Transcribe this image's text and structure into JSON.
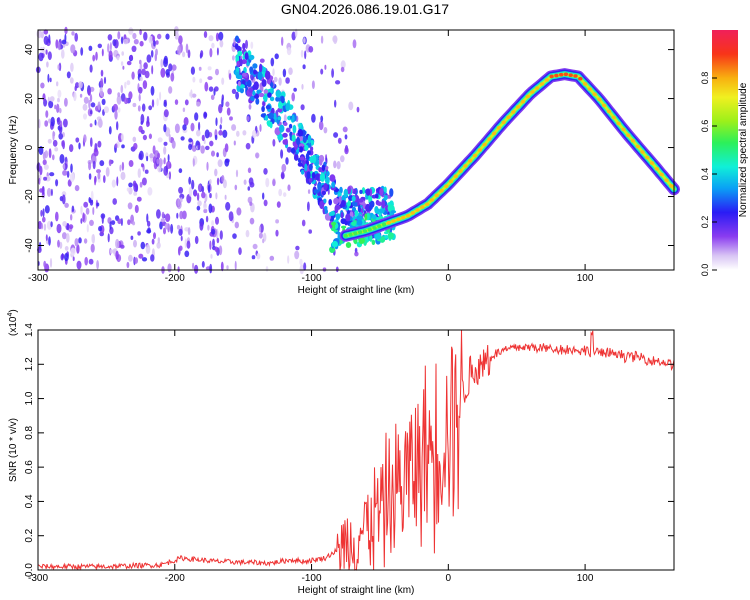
{
  "title": "GN04.2026.086.19.01.G17",
  "chart_data": [
    {
      "type": "heatmap",
      "xlabel": "Height of straight line (km)",
      "ylabel": "Frequency (Hz)",
      "xlim": [
        -300,
        165
      ],
      "ylim": [
        -50,
        48
      ],
      "xticks": [
        -300,
        -200,
        -100,
        0,
        100
      ],
      "yticks": [
        -40,
        -20,
        0,
        20,
        40
      ],
      "colorbar": {
        "label": "Normalized spectral amplitude",
        "ticks": [
          "0.0",
          "0.2",
          "0.4",
          "0.6",
          "0.8"
        ],
        "tick_values": [
          0.0,
          0.2,
          0.4,
          0.6,
          0.8
        ],
        "range": [
          0,
          1
        ]
      },
      "ridge": {
        "x": [
          -75,
          -60,
          -45,
          -30,
          -15,
          0,
          20,
          40,
          60,
          75,
          85,
          95,
          110,
          130,
          150,
          165
        ],
        "y": [
          -36,
          -34,
          -31,
          -28,
          -23,
          -15,
          -3,
          10,
          22,
          29,
          30,
          29,
          20,
          6,
          -7,
          -17
        ]
      },
      "noise_band": {
        "x": [
          -155,
          -140,
          -125,
          -110,
          -95,
          -80
        ],
        "y": [
          35,
          26,
          15,
          3,
          -12,
          -27
        ]
      }
    },
    {
      "type": "line",
      "xlabel": "Height of straight line (km)",
      "ylabel": "SNR (10 * v/v)",
      "multiplier": "(x10",
      "multiplier_exp": "4",
      "multiplier_close": ")",
      "xlim": [
        -300,
        165
      ],
      "ylim": [
        0,
        1.4
      ],
      "xticks": [
        -300,
        -200,
        -100,
        0,
        100
      ],
      "yticks": [
        "0.0",
        "0.2",
        "0.4",
        "0.6",
        "0.8",
        "1.0",
        "1.2",
        "1.4"
      ],
      "ytick_values": [
        0.0,
        0.2,
        0.4,
        0.6,
        0.8,
        1.0,
        1.2,
        1.4
      ],
      "color": "#ee3333",
      "series": {
        "name": "SNR",
        "x": [
          -300,
          -250,
          -210,
          -195,
          -170,
          -130,
          -115,
          -105,
          -90,
          -75,
          -60,
          -50,
          -40,
          -30,
          -20,
          -10,
          0,
          10,
          20,
          30,
          40,
          50,
          60,
          80,
          100,
          120,
          140,
          165
        ],
        "values": [
          0.02,
          0.02,
          0.03,
          0.07,
          0.05,
          0.04,
          0.06,
          0.05,
          0.07,
          0.15,
          0.25,
          0.35,
          0.45,
          0.55,
          0.65,
          0.72,
          0.85,
          1.05,
          1.18,
          1.24,
          1.28,
          1.3,
          1.3,
          1.29,
          1.28,
          1.26,
          1.24,
          1.2
        ]
      }
    }
  ]
}
